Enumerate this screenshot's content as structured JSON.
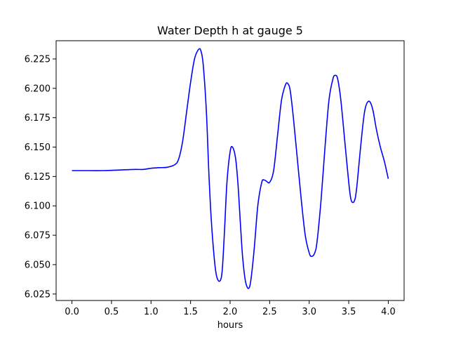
{
  "chart_data": {
    "type": "line",
    "title": "Water Depth h at gauge 5",
    "xlabel": "hours",
    "ylabel": "",
    "xlim": [
      -0.2,
      4.2
    ],
    "ylim": [
      6.0195,
      6.2405
    ],
    "xticks": [
      0.0,
      0.5,
      1.0,
      1.5,
      2.0,
      2.5,
      3.0,
      3.5,
      4.0
    ],
    "xtick_labels": [
      "0.0",
      "0.5",
      "1.0",
      "1.5",
      "2.0",
      "2.5",
      "3.0",
      "3.5",
      "4.0"
    ],
    "yticks": [
      6.025,
      6.05,
      6.075,
      6.1,
      6.125,
      6.15,
      6.175,
      6.2,
      6.225
    ],
    "ytick_labels": [
      "6.025",
      "6.050",
      "6.075",
      "6.100",
      "6.125",
      "6.150",
      "6.175",
      "6.200",
      "6.225"
    ],
    "grid": false,
    "series": [
      {
        "color": "#0000ff",
        "x": [
          0.0,
          0.2,
          0.4,
          0.6,
          0.8,
          0.9,
          1.0,
          1.1,
          1.2,
          1.3,
          1.35,
          1.4,
          1.45,
          1.5,
          1.55,
          1.6,
          1.63,
          1.66,
          1.7,
          1.73,
          1.76,
          1.8,
          1.83,
          1.87,
          1.9,
          1.93,
          1.96,
          2.0,
          2.03,
          2.07,
          2.1,
          2.13,
          2.16,
          2.2,
          2.25,
          2.3,
          2.35,
          2.4,
          2.43,
          2.46,
          2.5,
          2.55,
          2.6,
          2.65,
          2.7,
          2.73,
          2.76,
          2.8,
          2.85,
          2.9,
          2.95,
          3.0,
          3.03,
          3.07,
          3.1,
          3.15,
          3.2,
          3.25,
          3.3,
          3.33,
          3.36,
          3.4,
          3.45,
          3.5,
          3.53,
          3.57,
          3.6,
          3.65,
          3.7,
          3.75,
          3.8,
          3.85,
          3.9,
          3.95,
          4.0
        ],
        "y": [
          6.13,
          6.13,
          6.13,
          6.1305,
          6.131,
          6.131,
          6.132,
          6.1325,
          6.1328,
          6.135,
          6.14,
          6.155,
          6.18,
          6.205,
          6.225,
          6.233,
          6.232,
          6.22,
          6.18,
          6.13,
          6.09,
          6.055,
          6.04,
          6.036,
          6.045,
          6.08,
          6.12,
          6.146,
          6.15,
          6.14,
          6.118,
          6.085,
          6.055,
          6.034,
          6.032,
          6.06,
          6.1,
          6.12,
          6.122,
          6.121,
          6.12,
          6.13,
          6.16,
          6.19,
          6.203,
          6.204,
          6.198,
          6.175,
          6.14,
          6.105,
          6.075,
          6.06,
          6.057,
          6.06,
          6.07,
          6.105,
          6.15,
          6.19,
          6.208,
          6.211,
          6.208,
          6.19,
          6.155,
          6.12,
          6.105,
          6.104,
          6.115,
          6.15,
          6.18,
          6.189,
          6.183,
          6.165,
          6.15,
          6.138,
          6.123
        ]
      }
    ]
  }
}
